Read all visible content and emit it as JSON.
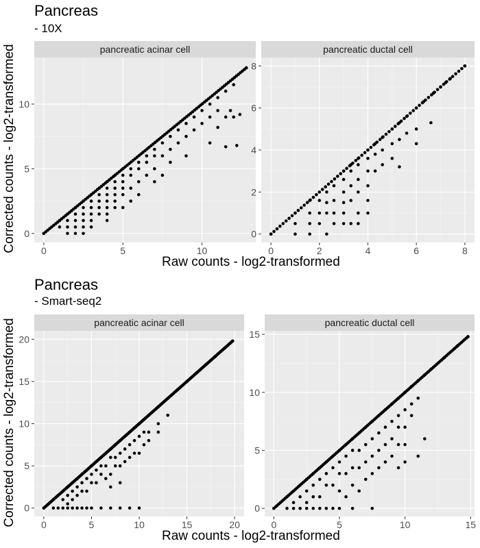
{
  "figures": [
    {
      "title": "Pancreas",
      "subtitle": " - 10X",
      "xlabel": "Raw counts - log2-transformed",
      "ylabel": "Corrected counts - log2-transformed"
    },
    {
      "title": "Pancreas",
      "subtitle": " - Smart-seq2",
      "xlabel": "Raw counts - log2-transformed",
      "ylabel": "Corrected counts - log2-transformed"
    }
  ],
  "chart_data": [
    {
      "type": "scatter",
      "figure": "Pancreas - 10X",
      "panel": "pancreatic acinar cell",
      "xlim": [
        -0.6,
        13.4
      ],
      "ylim": [
        -0.7,
        13.6
      ],
      "xticks": [
        0,
        5,
        10
      ],
      "yticks": [
        0,
        5,
        10
      ],
      "diagonal_max": 12.8,
      "points": [
        [
          0,
          0
        ],
        [
          1,
          1
        ],
        [
          1,
          0.5
        ],
        [
          1.5,
          1.5
        ],
        [
          1.5,
          1
        ],
        [
          1.5,
          0.5
        ],
        [
          1.5,
          0
        ],
        [
          2,
          2
        ],
        [
          2,
          1.5
        ],
        [
          2,
          1
        ],
        [
          2,
          0.5
        ],
        [
          2,
          0
        ],
        [
          2.5,
          2.5
        ],
        [
          2.5,
          2
        ],
        [
          2.5,
          1.5
        ],
        [
          2.5,
          1
        ],
        [
          2.5,
          0.5
        ],
        [
          2.5,
          0
        ],
        [
          3,
          3
        ],
        [
          3,
          2.5
        ],
        [
          3,
          2
        ],
        [
          3,
          1.5
        ],
        [
          3,
          1
        ],
        [
          3,
          0.5
        ],
        [
          3.5,
          3.5
        ],
        [
          3.5,
          3
        ],
        [
          3.5,
          2.5
        ],
        [
          3.5,
          2
        ],
        [
          3.5,
          1.5
        ],
        [
          4,
          4
        ],
        [
          4,
          3.5
        ],
        [
          4,
          3
        ],
        [
          4,
          2.5
        ],
        [
          4,
          2
        ],
        [
          4,
          1.5
        ],
        [
          4,
          1
        ],
        [
          4.5,
          4.5
        ],
        [
          4.5,
          4
        ],
        [
          4.5,
          3.5
        ],
        [
          4.5,
          3
        ],
        [
          4.5,
          2.5
        ],
        [
          4.5,
          2
        ],
        [
          5,
          5
        ],
        [
          5,
          4.5
        ],
        [
          5,
          4
        ],
        [
          5,
          3.5
        ],
        [
          5,
          3
        ],
        [
          5,
          2
        ],
        [
          5.5,
          5
        ],
        [
          5.5,
          4.5
        ],
        [
          5.5,
          3.5
        ],
        [
          5.5,
          2.5
        ],
        [
          6,
          5.5
        ],
        [
          6,
          5
        ],
        [
          6,
          4
        ],
        [
          6,
          3
        ],
        [
          6.5,
          6
        ],
        [
          6.5,
          5.5
        ],
        [
          6.5,
          4.5
        ],
        [
          7,
          6.5
        ],
        [
          7,
          6
        ],
        [
          7,
          5
        ],
        [
          7,
          4
        ],
        [
          7.5,
          7
        ],
        [
          7.5,
          6
        ],
        [
          7.5,
          4.5
        ],
        [
          8,
          7.5
        ],
        [
          8,
          6.5
        ],
        [
          8,
          5.5
        ],
        [
          8.5,
          8
        ],
        [
          8.5,
          7
        ],
        [
          9,
          8.5
        ],
        [
          9,
          7.5
        ],
        [
          9,
          6
        ],
        [
          9.5,
          9
        ],
        [
          9.5,
          8
        ],
        [
          10,
          9.5
        ],
        [
          10,
          8.5
        ],
        [
          10.5,
          10
        ],
        [
          10.5,
          9
        ],
        [
          10.5,
          7
        ],
        [
          11,
          10.5
        ],
        [
          11,
          9.5
        ],
        [
          11,
          8.2
        ],
        [
          11.5,
          11
        ],
        [
          11.5,
          9
        ],
        [
          11.5,
          6.7
        ],
        [
          12,
          11.5
        ],
        [
          11.8,
          9.5
        ],
        [
          12,
          9
        ],
        [
          12.2,
          6.8
        ],
        [
          12.4,
          9.2
        ],
        [
          12.8,
          12.8
        ]
      ]
    },
    {
      "type": "scatter",
      "figure": "Pancreas - 10X",
      "panel": "pancreatic ductal cell",
      "xlim": [
        -0.4,
        8.4
      ],
      "ylim": [
        -0.4,
        8.4
      ],
      "xticks": [
        0,
        2,
        4,
        6,
        8
      ],
      "yticks": [
        0,
        2,
        4,
        6,
        8
      ],
      "diagonal_max": 8.0,
      "points": [
        [
          0,
          0
        ],
        [
          1,
          1
        ],
        [
          1,
          0.5
        ],
        [
          1,
          0
        ],
        [
          1.6,
          1.6
        ],
        [
          1.6,
          1
        ],
        [
          1.6,
          0.5
        ],
        [
          1.6,
          0
        ],
        [
          2,
          1.6
        ],
        [
          2,
          1
        ],
        [
          2,
          0.5
        ],
        [
          2.3,
          2
        ],
        [
          2.3,
          1.5
        ],
        [
          2.3,
          1
        ],
        [
          2.3,
          0
        ],
        [
          2.6,
          2.3
        ],
        [
          2.6,
          1.6
        ],
        [
          2.6,
          1
        ],
        [
          2.6,
          0.5
        ],
        [
          3,
          3
        ],
        [
          3,
          2.6
        ],
        [
          3,
          2
        ],
        [
          3,
          1.5
        ],
        [
          3,
          1
        ],
        [
          3,
          0.5
        ],
        [
          3.3,
          3.3
        ],
        [
          3.3,
          3
        ],
        [
          3.3,
          2.3
        ],
        [
          3.3,
          1.6
        ],
        [
          3.3,
          0.5
        ],
        [
          3.6,
          3.6
        ],
        [
          3.6,
          3.3
        ],
        [
          3.6,
          2.6
        ],
        [
          3.6,
          2
        ],
        [
          3.6,
          1
        ],
        [
          3.6,
          0.5
        ],
        [
          4,
          4
        ],
        [
          4,
          3.6
        ],
        [
          4,
          3
        ],
        [
          4,
          2.3
        ],
        [
          4,
          1.6
        ],
        [
          4,
          1
        ],
        [
          4.3,
          4.3
        ],
        [
          4.3,
          3.8
        ],
        [
          4.3,
          3
        ],
        [
          4.6,
          4.6
        ],
        [
          4.6,
          4
        ],
        [
          4.6,
          3.3
        ],
        [
          5,
          5
        ],
        [
          5,
          4.3
        ],
        [
          5,
          3.6
        ],
        [
          5.3,
          5.3
        ],
        [
          5.3,
          4.5
        ],
        [
          5.3,
          3.2
        ],
        [
          5.6,
          5.6
        ],
        [
          5.6,
          4.8
        ],
        [
          6,
          6
        ],
        [
          6,
          5
        ],
        [
          6,
          4.3
        ],
        [
          6.3,
          6.3
        ],
        [
          6.7,
          6.7
        ],
        [
          6.6,
          5.3
        ],
        [
          7,
          7
        ],
        [
          7.2,
          7.2
        ],
        [
          7.4,
          7.4
        ],
        [
          8,
          8
        ]
      ]
    },
    {
      "type": "scatter",
      "figure": "Pancreas - Smart-seq2",
      "panel": "pancreatic acinar cell",
      "xlim": [
        -1,
        21
      ],
      "ylim": [
        -1,
        21
      ],
      "xticks": [
        0,
        5,
        10,
        15,
        20
      ],
      "yticks": [
        0,
        5,
        10,
        15,
        20
      ],
      "diagonal_max": 19.8,
      "points": [
        [
          0,
          0
        ],
        [
          1,
          0
        ],
        [
          1,
          1
        ],
        [
          1.5,
          1.5
        ],
        [
          1.5,
          0
        ],
        [
          2,
          2
        ],
        [
          2,
          1
        ],
        [
          2,
          0
        ],
        [
          2.5,
          2.5
        ],
        [
          2.5,
          1.5
        ],
        [
          2.5,
          0.5
        ],
        [
          2.5,
          0
        ],
        [
          3,
          3
        ],
        [
          3,
          2
        ],
        [
          3,
          1
        ],
        [
          3,
          0
        ],
        [
          3.5,
          3.5
        ],
        [
          3.5,
          2.5
        ],
        [
          3.5,
          1.5
        ],
        [
          3.5,
          0
        ],
        [
          4,
          4
        ],
        [
          4,
          3
        ],
        [
          4,
          2
        ],
        [
          4,
          0
        ],
        [
          4.5,
          4.5
        ],
        [
          4.5,
          3.5
        ],
        [
          4.5,
          2
        ],
        [
          4.5,
          0
        ],
        [
          5,
          5
        ],
        [
          5,
          4
        ],
        [
          5,
          3
        ],
        [
          5,
          0
        ],
        [
          5.5,
          5.5
        ],
        [
          5.5,
          4.5
        ],
        [
          5.5,
          3
        ],
        [
          6,
          6
        ],
        [
          6,
          5
        ],
        [
          6,
          4
        ],
        [
          6,
          0
        ],
        [
          6.5,
          6.5
        ],
        [
          6.5,
          5
        ],
        [
          6.5,
          3.5
        ],
        [
          7,
          7
        ],
        [
          7,
          6
        ],
        [
          7,
          4
        ],
        [
          7,
          2.5
        ],
        [
          7,
          0
        ],
        [
          7.5,
          7.5
        ],
        [
          7.5,
          6
        ],
        [
          7.5,
          5
        ],
        [
          8,
          8
        ],
        [
          8,
          6.5
        ],
        [
          8,
          5
        ],
        [
          8,
          3
        ],
        [
          8,
          0
        ],
        [
          8.5,
          8.5
        ],
        [
          8.5,
          7
        ],
        [
          8.5,
          5.5
        ],
        [
          9,
          9
        ],
        [
          9,
          7.5
        ],
        [
          9,
          6
        ],
        [
          9,
          0
        ],
        [
          9.5,
          9.5
        ],
        [
          9.5,
          8
        ],
        [
          9.5,
          6.5
        ],
        [
          10,
          10
        ],
        [
          10,
          8.5
        ],
        [
          10,
          6.5
        ],
        [
          10,
          0
        ],
        [
          10.5,
          10.5
        ],
        [
          10.5,
          9
        ],
        [
          10.5,
          7.5
        ],
        [
          11,
          11
        ],
        [
          11,
          9
        ],
        [
          11,
          8
        ],
        [
          12,
          12
        ],
        [
          12,
          10
        ],
        [
          12,
          9
        ],
        [
          13,
          13
        ],
        [
          13,
          11
        ],
        [
          14,
          14
        ],
        [
          15,
          15
        ],
        [
          16,
          16
        ],
        [
          17,
          17
        ],
        [
          18,
          18
        ],
        [
          19,
          19
        ],
        [
          19.8,
          19.8
        ]
      ]
    },
    {
      "type": "scatter",
      "figure": "Pancreas - Smart-seq2",
      "panel": "pancreatic ductal cell",
      "xlim": [
        -0.7,
        15.3
      ],
      "ylim": [
        -0.7,
        15.3
      ],
      "xticks": [
        0,
        5,
        10,
        15
      ],
      "yticks": [
        0,
        5,
        10,
        15
      ],
      "diagonal_max": 14.8,
      "points": [
        [
          0,
          0
        ],
        [
          1,
          1
        ],
        [
          1,
          0
        ],
        [
          1.5,
          1.5
        ],
        [
          1.5,
          0.5
        ],
        [
          1.5,
          0
        ],
        [
          2,
          2
        ],
        [
          2,
          1
        ],
        [
          2,
          0
        ],
        [
          2.5,
          2.5
        ],
        [
          2.5,
          1.5
        ],
        [
          2.5,
          0.5
        ],
        [
          2.5,
          0
        ],
        [
          3,
          3
        ],
        [
          3,
          2
        ],
        [
          3,
          1
        ],
        [
          3,
          0
        ],
        [
          3.5,
          3.5
        ],
        [
          3.5,
          2.5
        ],
        [
          3.5,
          1
        ],
        [
          3.5,
          0
        ],
        [
          4,
          4
        ],
        [
          4,
          3
        ],
        [
          4,
          2
        ],
        [
          4,
          0
        ],
        [
          4.5,
          4.5
        ],
        [
          4.5,
          3.5
        ],
        [
          4.5,
          2
        ],
        [
          4.5,
          0
        ],
        [
          5,
          5
        ],
        [
          5,
          4
        ],
        [
          5,
          3
        ],
        [
          5,
          1.5
        ],
        [
          5,
          0
        ],
        [
          5.5,
          5.5
        ],
        [
          5.5,
          4.5
        ],
        [
          5.5,
          3
        ],
        [
          5.5,
          1
        ],
        [
          6,
          6
        ],
        [
          6,
          5
        ],
        [
          6,
          3.5
        ],
        [
          6,
          2
        ],
        [
          6,
          0
        ],
        [
          6.5,
          6.5
        ],
        [
          6.5,
          5
        ],
        [
          6.5,
          3.5
        ],
        [
          6.5,
          1.5
        ],
        [
          7,
          7
        ],
        [
          7,
          5.5
        ],
        [
          7,
          4
        ],
        [
          7,
          2.5
        ],
        [
          7.5,
          7.5
        ],
        [
          7.5,
          6
        ],
        [
          7.5,
          4.5
        ],
        [
          7.5,
          3
        ],
        [
          7.5,
          0
        ],
        [
          8,
          8
        ],
        [
          8,
          6.5
        ],
        [
          8,
          5
        ],
        [
          8,
          3.5
        ],
        [
          8.5,
          8.5
        ],
        [
          8.5,
          7
        ],
        [
          8.5,
          5.5
        ],
        [
          8.5,
          4
        ],
        [
          9,
          9
        ],
        [
          9,
          7.5
        ],
        [
          9,
          6
        ],
        [
          9,
          4.5
        ],
        [
          9.5,
          9.5
        ],
        [
          9.5,
          8
        ],
        [
          9.5,
          7
        ],
        [
          9.5,
          5.5
        ],
        [
          9.5,
          3.5
        ],
        [
          10,
          10
        ],
        [
          10,
          8.5
        ],
        [
          10,
          7
        ],
        [
          10,
          5.5
        ],
        [
          10,
          4
        ],
        [
          10.5,
          10.5
        ],
        [
          10.5,
          9
        ],
        [
          10.5,
          8
        ],
        [
          11,
          11
        ],
        [
          11,
          9.5
        ],
        [
          11,
          4.5
        ],
        [
          11.5,
          11.5
        ],
        [
          11.5,
          6
        ],
        [
          12,
          12
        ],
        [
          13,
          13
        ],
        [
          14,
          14
        ],
        [
          14.8,
          14.8
        ]
      ]
    }
  ]
}
